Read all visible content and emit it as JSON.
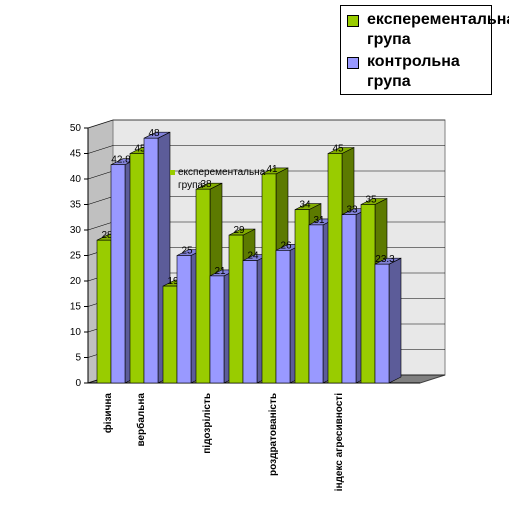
{
  "chart_data": {
    "type": "bar3d",
    "categories": [
      "фізична",
      "вербальна",
      null,
      "підозрілість",
      null,
      "роздратованість",
      null,
      "індекс агресивності",
      null
    ],
    "series": [
      {
        "name": "експерементальна група",
        "color": "#99cc00",
        "values": [
          28,
          45,
          19,
          38,
          29,
          41,
          34,
          45,
          35
        ]
      },
      {
        "name": "контрольна група",
        "color": "#9999ff",
        "values": [
          42.8,
          48,
          25,
          21,
          24,
          26,
          31,
          33,
          23.3
        ]
      }
    ],
    "ylim": [
      0,
      50
    ],
    "yticks": [
      0,
      5,
      10,
      15,
      20,
      25,
      30,
      35,
      40,
      45,
      50
    ],
    "grid": true,
    "legend": "top-right"
  }
}
